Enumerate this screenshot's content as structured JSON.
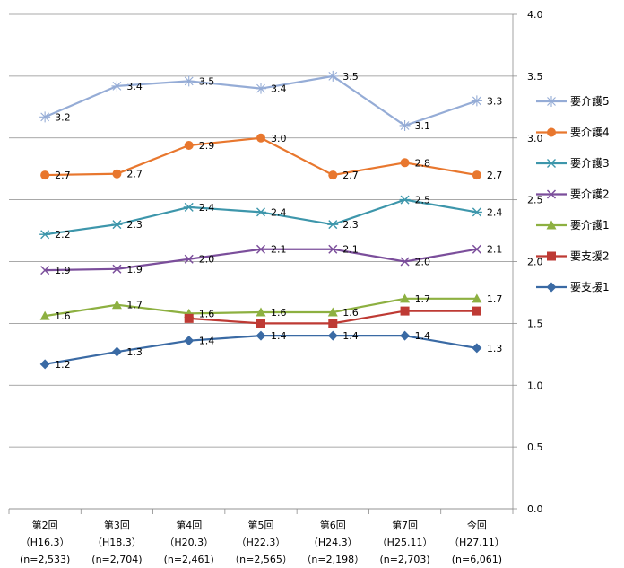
{
  "chart_data": {
    "type": "line",
    "categories": [
      [
        "第2回",
        "（H16.3）",
        "(n=2,533)"
      ],
      [
        "第3回",
        "（H18.3）",
        "(n=2,704)"
      ],
      [
        "第4回",
        "（H20.3）",
        "(n=2,461)"
      ],
      [
        "第5回",
        "（H22.3）",
        "（n=2,565）"
      ],
      [
        "第6回",
        "（H24.3）",
        "（n=2,198）"
      ],
      [
        "第7回",
        "（H25.11）",
        "(n=2,703)"
      ],
      [
        "今回",
        "（H27.11）",
        "(n=6,061)"
      ]
    ],
    "ylim": [
      0,
      4.0
    ],
    "yticks": [
      "0.0",
      "0.5",
      "1.0",
      "1.5",
      "2.0",
      "2.5",
      "3.0",
      "3.5",
      "4.0"
    ],
    "y_axis_side": "right",
    "grid": true,
    "legend_position": "right",
    "series": [
      {
        "name": "要介護5",
        "color": "#95acd6",
        "marker": "star",
        "values": [
          3.17,
          3.42,
          3.46,
          3.4,
          3.5,
          3.1,
          3.3
        ],
        "labels": [
          "3.2",
          "3.4",
          "3.5",
          "3.4",
          "3.5",
          "3.1",
          "3.3"
        ]
      },
      {
        "name": "要介護4",
        "color": "#e8772e",
        "marker": "circle",
        "values": [
          2.7,
          2.71,
          2.94,
          3.0,
          2.7,
          2.8,
          2.7
        ],
        "labels": [
          "2.7",
          "2.7",
          "2.9",
          "3.0",
          "2.7",
          "2.8",
          "2.7"
        ]
      },
      {
        "name": "要介護3",
        "color": "#3d96ab",
        "marker": "asterisk",
        "values": [
          2.22,
          2.3,
          2.44,
          2.4,
          2.3,
          2.5,
          2.4
        ],
        "labels": [
          "2.2",
          "2.3",
          "2.4",
          "2.4",
          "2.3",
          "2.5",
          "2.4"
        ]
      },
      {
        "name": "要介護2",
        "color": "#7b4e9b",
        "marker": "x",
        "values": [
          1.93,
          1.94,
          2.02,
          2.1,
          2.1,
          2.0,
          2.1
        ],
        "labels": [
          "1.9",
          "1.9",
          "2.0",
          "2.1",
          "2.1",
          "2.0",
          "2.1"
        ]
      },
      {
        "name": "要介護1",
        "color": "#8db041",
        "marker": "triangle",
        "values": [
          1.56,
          1.65,
          1.58,
          1.59,
          1.59,
          1.7,
          1.7
        ],
        "labels": [
          "1.6",
          "1.7",
          "1.6",
          "1.6",
          "1.6",
          "1.7",
          "1.7"
        ]
      },
      {
        "name": "要支援2",
        "color": "#be3a34",
        "marker": "square",
        "values": [
          null,
          null,
          1.54,
          1.5,
          1.5,
          1.6,
          1.6
        ],
        "labels": [
          null,
          null,
          null,
          null,
          null,
          null,
          null
        ]
      },
      {
        "name": "要支援1",
        "color": "#3a6aa4",
        "marker": "diamond",
        "values": [
          1.17,
          1.27,
          1.36,
          1.4,
          1.4,
          1.4,
          1.3
        ],
        "labels": [
          "1.2",
          "1.3",
          "1.4",
          "1.4",
          "1.4",
          "1.4",
          "1.3"
        ]
      }
    ]
  }
}
